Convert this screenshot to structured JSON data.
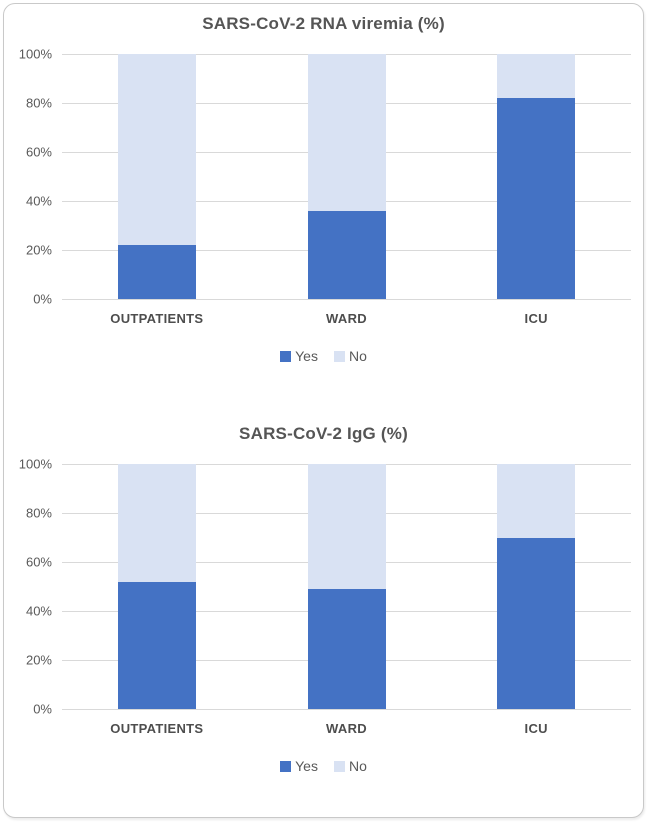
{
  "page": {
    "background": "#ffffff",
    "card_border_color": "#c9c9c9"
  },
  "colors": {
    "series_yes": "#4472c4",
    "series_no": "#d9e2f3",
    "gridline": "#d9d9d9",
    "axis_text": "#595959",
    "category_text": "#4d4d4d",
    "title_text": "#555555"
  },
  "chart_data": [
    {
      "type": "bar",
      "stacked": true,
      "title": "SARS-CoV-2 RNA viremia (%)",
      "categories": [
        "OUTPATIENTS",
        "WARD",
        "ICU"
      ],
      "series": [
        {
          "name": "Yes",
          "color": "#4472c4",
          "values": [
            22,
            36,
            82
          ]
        },
        {
          "name": "No",
          "color": "#d9e2f3",
          "values": [
            78,
            64,
            18
          ]
        }
      ],
      "y_ticks": [
        "100%",
        "80%",
        "60%",
        "40%",
        "20%",
        "0%"
      ],
      "ylim": [
        0,
        100
      ],
      "grid": true,
      "legend_position": "bottom"
    },
    {
      "type": "bar",
      "stacked": true,
      "title": "SARS-CoV-2 IgG (%)",
      "categories": [
        "OUTPATIENTS",
        "WARD",
        "ICU"
      ],
      "series": [
        {
          "name": "Yes",
          "color": "#4472c4",
          "values": [
            52,
            49,
            70
          ]
        },
        {
          "name": "No",
          "color": "#d9e2f3",
          "values": [
            48,
            51,
            30
          ]
        }
      ],
      "y_ticks": [
        "100%",
        "80%",
        "60%",
        "40%",
        "20%",
        "0%"
      ],
      "ylim": [
        0,
        100
      ],
      "grid": true,
      "legend_position": "bottom"
    }
  ]
}
